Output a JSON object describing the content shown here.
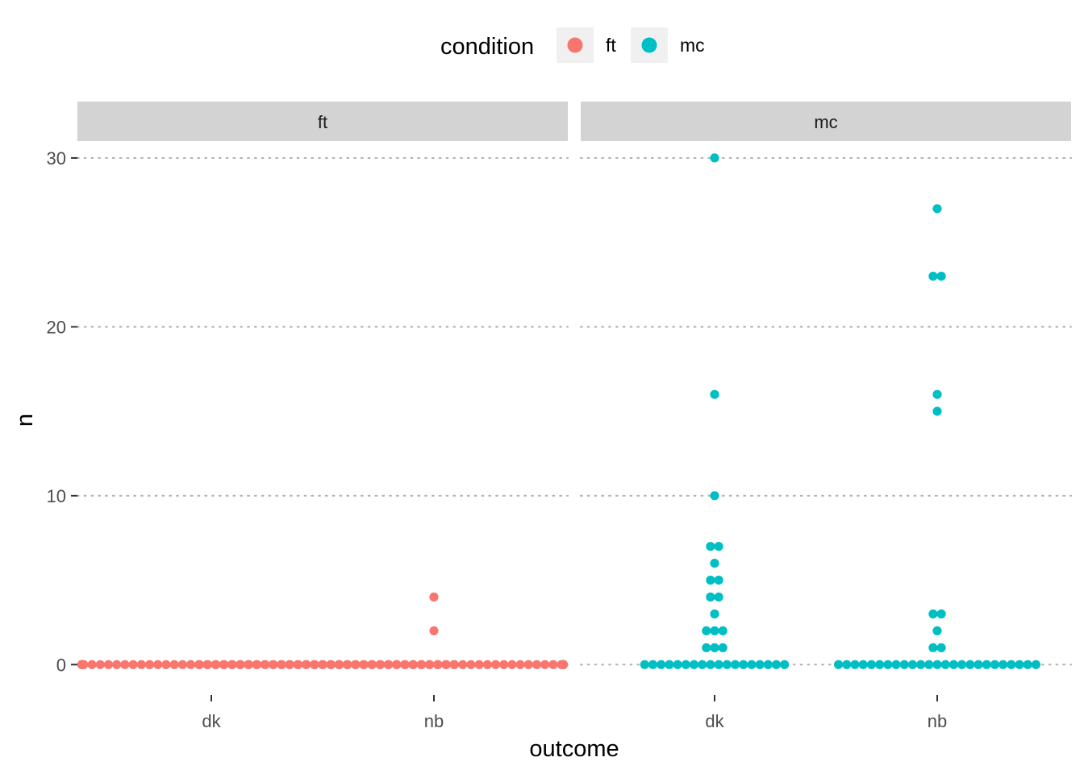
{
  "chart_data": {
    "type": "scatter",
    "style": "faceted dot plot (stacked points)",
    "facet_by": "condition",
    "facets": [
      {
        "name": "ft",
        "color": "#F8766D",
        "categories": [
          "dk",
          "nb"
        ],
        "groups": [
          {
            "category": "dk",
            "counts": {
              "0": 60
            }
          },
          {
            "category": "nb",
            "counts": {
              "0": 58,
              "2": 1,
              "4": 1
            }
          }
        ]
      },
      {
        "name": "mc",
        "color": "#00BFC4",
        "categories": [
          "dk",
          "nb"
        ],
        "groups": [
          {
            "category": "dk",
            "counts": {
              "0": 18,
              "1": 3,
              "2": 3,
              "3": 1,
              "4": 2,
              "5": 2,
              "6": 1,
              "7": 2,
              "10": 1,
              "16": 1,
              "30": 1
            }
          },
          {
            "category": "nb",
            "counts": {
              "0": 25,
              "1": 2,
              "2": 1,
              "3": 2,
              "15": 1,
              "16": 1,
              "23": 2,
              "27": 1
            }
          }
        ]
      }
    ],
    "xlabel": "outcome",
    "ylabel": "n",
    "ylim": [
      -1.8,
      31
    ],
    "yticks": [
      "0",
      "10",
      "20",
      "30"
    ],
    "grid": "horizontal dotted major lines",
    "legend": {
      "title": "condition",
      "placement": "top",
      "entries": [
        {
          "label": "ft",
          "color": "#F8766D"
        },
        {
          "label": "mc",
          "color": "#00BFC4"
        }
      ]
    }
  }
}
